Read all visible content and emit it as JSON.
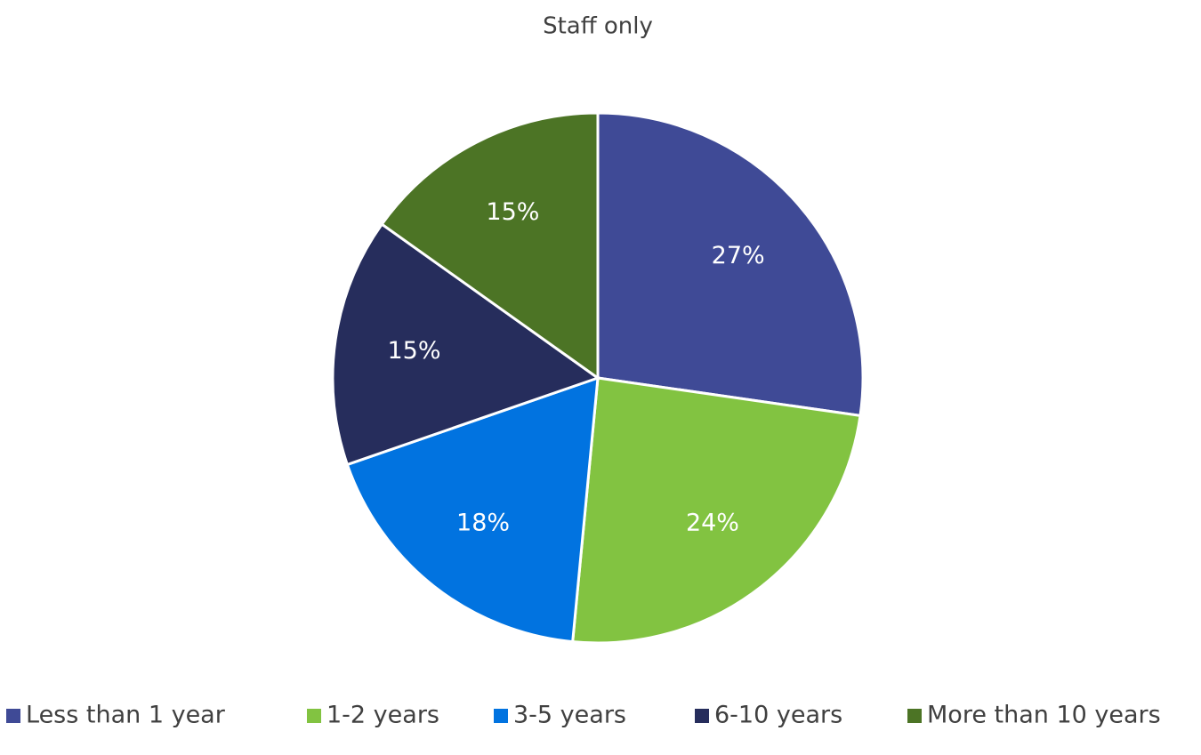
{
  "chart_data": {
    "type": "pie",
    "title": "Staff only",
    "categories": [
      "Less than 1 year",
      "1-2 years",
      "3-5 years",
      "6-10 years",
      "More than 10 years"
    ],
    "values": [
      27,
      24,
      18,
      15,
      15
    ],
    "value_labels": [
      "27%",
      "24%",
      "18%",
      "15%",
      "15%"
    ],
    "colors": [
      "#3f4a96",
      "#82c341",
      "#0173e0",
      "#262d5c",
      "#4c7425"
    ],
    "legend": "bottom"
  }
}
